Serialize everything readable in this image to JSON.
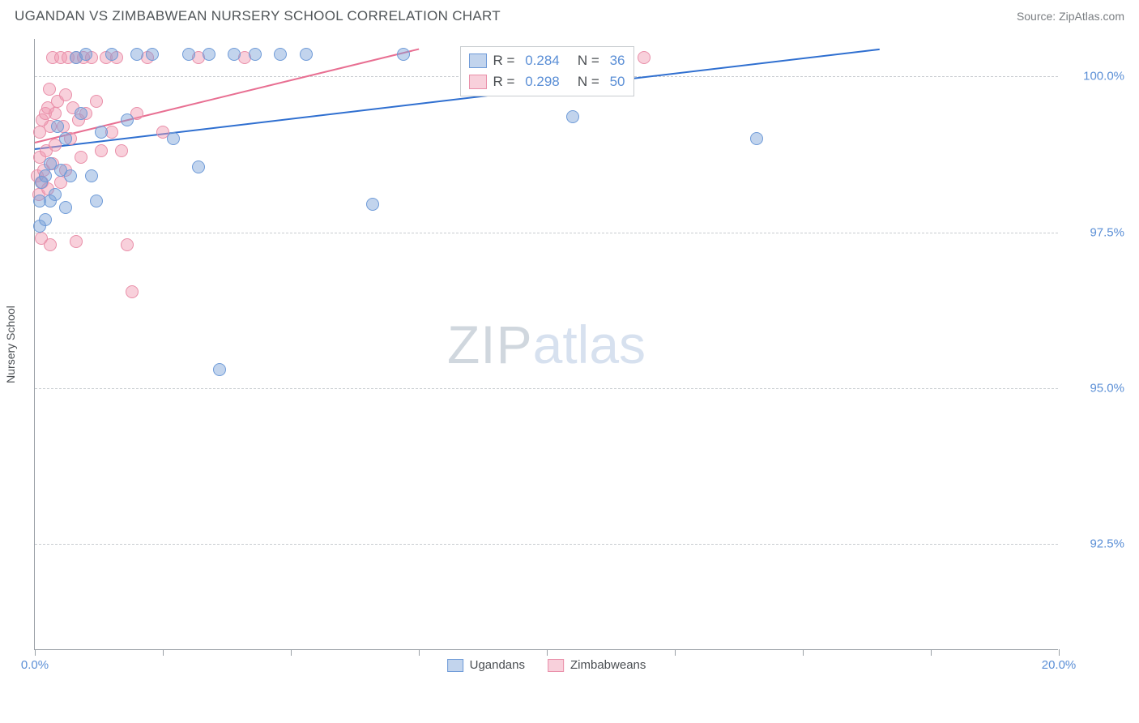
{
  "header": {
    "title": "UGANDAN VS ZIMBABWEAN NURSERY SCHOOL CORRELATION CHART",
    "source": "Source: ZipAtlas.com"
  },
  "chart": {
    "type": "scatter",
    "y_axis_title": "Nursery School",
    "xlim": [
      0,
      20
    ],
    "ylim": [
      90.8,
      100.6
    ],
    "x_ticks": [
      0,
      2.5,
      5,
      7.5,
      10,
      12.5,
      15,
      17.5,
      20
    ],
    "x_tick_labels_shown": {
      "0": "0.0%",
      "20": "20.0%"
    },
    "y_grid": [
      92.5,
      95.0,
      97.5,
      100.0
    ],
    "y_tick_labels": {
      "92.5": "92.5%",
      "95.0": "95.0%",
      "97.5": "97.5%",
      "100.0": "100.0%"
    },
    "marker_radius": 8,
    "marker_stroke_width": 1.2,
    "grid_color": "#c8ccd0",
    "axis_color": "#9aa0a6",
    "background_color": "#ffffff",
    "series": [
      {
        "name": "Ugandans",
        "fill": "rgba(120,160,215,0.45)",
        "stroke": "#6f9bd8",
        "trend_color": "#2f6fd0",
        "trend_width": 2,
        "trend": {
          "x1": 0,
          "y1": 98.85,
          "x2": 16.5,
          "y2": 100.45
        },
        "R": "0.284",
        "N": "36",
        "points": [
          [
            0.1,
            97.6
          ],
          [
            0.1,
            98.0
          ],
          [
            0.12,
            98.3
          ],
          [
            0.2,
            97.7
          ],
          [
            0.2,
            98.4
          ],
          [
            0.3,
            98.6
          ],
          [
            0.3,
            98.0
          ],
          [
            0.4,
            98.1
          ],
          [
            0.45,
            99.2
          ],
          [
            0.5,
            98.5
          ],
          [
            0.6,
            99.0
          ],
          [
            0.6,
            97.9
          ],
          [
            0.7,
            98.4
          ],
          [
            0.8,
            100.3
          ],
          [
            0.9,
            99.4
          ],
          [
            1.0,
            100.35
          ],
          [
            1.1,
            98.4
          ],
          [
            1.2,
            98.0
          ],
          [
            1.3,
            99.1
          ],
          [
            1.5,
            100.35
          ],
          [
            1.8,
            99.3
          ],
          [
            2.0,
            100.35
          ],
          [
            2.3,
            100.35
          ],
          [
            2.7,
            99.0
          ],
          [
            3.0,
            100.35
          ],
          [
            3.2,
            98.55
          ],
          [
            3.4,
            100.35
          ],
          [
            3.6,
            95.3
          ],
          [
            3.9,
            100.35
          ],
          [
            4.3,
            100.35
          ],
          [
            4.8,
            100.35
          ],
          [
            5.3,
            100.35
          ],
          [
            6.6,
            97.95
          ],
          [
            7.2,
            100.35
          ],
          [
            10.5,
            99.35
          ],
          [
            14.1,
            99.0
          ]
        ]
      },
      {
        "name": "Zimbabweans",
        "fill": "rgba(240,150,175,0.45)",
        "stroke": "#e98fa9",
        "trend_color": "#e86f92",
        "trend_width": 2,
        "trend": {
          "x1": 0,
          "y1": 98.95,
          "x2": 7.5,
          "y2": 100.45
        },
        "R": "0.298",
        "N": "50",
        "points": [
          [
            0.05,
            98.4
          ],
          [
            0.08,
            98.1
          ],
          [
            0.1,
            98.7
          ],
          [
            0.1,
            99.1
          ],
          [
            0.12,
            97.4
          ],
          [
            0.15,
            98.3
          ],
          [
            0.15,
            99.3
          ],
          [
            0.18,
            98.5
          ],
          [
            0.2,
            99.4
          ],
          [
            0.22,
            98.8
          ],
          [
            0.25,
            99.5
          ],
          [
            0.25,
            98.2
          ],
          [
            0.28,
            99.8
          ],
          [
            0.3,
            97.3
          ],
          [
            0.3,
            99.2
          ],
          [
            0.35,
            98.6
          ],
          [
            0.35,
            100.3
          ],
          [
            0.4,
            99.4
          ],
          [
            0.4,
            98.9
          ],
          [
            0.45,
            99.6
          ],
          [
            0.5,
            100.3
          ],
          [
            0.5,
            98.3
          ],
          [
            0.55,
            99.2
          ],
          [
            0.6,
            99.7
          ],
          [
            0.6,
            98.5
          ],
          [
            0.65,
            100.3
          ],
          [
            0.7,
            99.0
          ],
          [
            0.75,
            99.5
          ],
          [
            0.8,
            97.35
          ],
          [
            0.8,
            100.3
          ],
          [
            0.85,
            99.3
          ],
          [
            0.9,
            98.7
          ],
          [
            0.95,
            100.3
          ],
          [
            1.0,
            99.4
          ],
          [
            1.1,
            100.3
          ],
          [
            1.2,
            99.6
          ],
          [
            1.3,
            98.8
          ],
          [
            1.4,
            100.3
          ],
          [
            1.5,
            99.1
          ],
          [
            1.6,
            100.3
          ],
          [
            1.7,
            98.8
          ],
          [
            1.8,
            97.3
          ],
          [
            1.9,
            96.55
          ],
          [
            2.0,
            99.4
          ],
          [
            2.2,
            100.3
          ],
          [
            2.5,
            99.1
          ],
          [
            3.2,
            100.3
          ],
          [
            4.1,
            100.3
          ],
          [
            9.7,
            100.3
          ],
          [
            11.9,
            100.3
          ]
        ]
      }
    ],
    "stats_box": {
      "left_pct": 41.5,
      "top_pct": 1.2
    },
    "legend_labels": {
      "ugandans": "Ugandans",
      "zimbabweans": "Zimbabweans"
    },
    "watermark": {
      "zip": "ZIP",
      "atlas": "atlas"
    }
  }
}
